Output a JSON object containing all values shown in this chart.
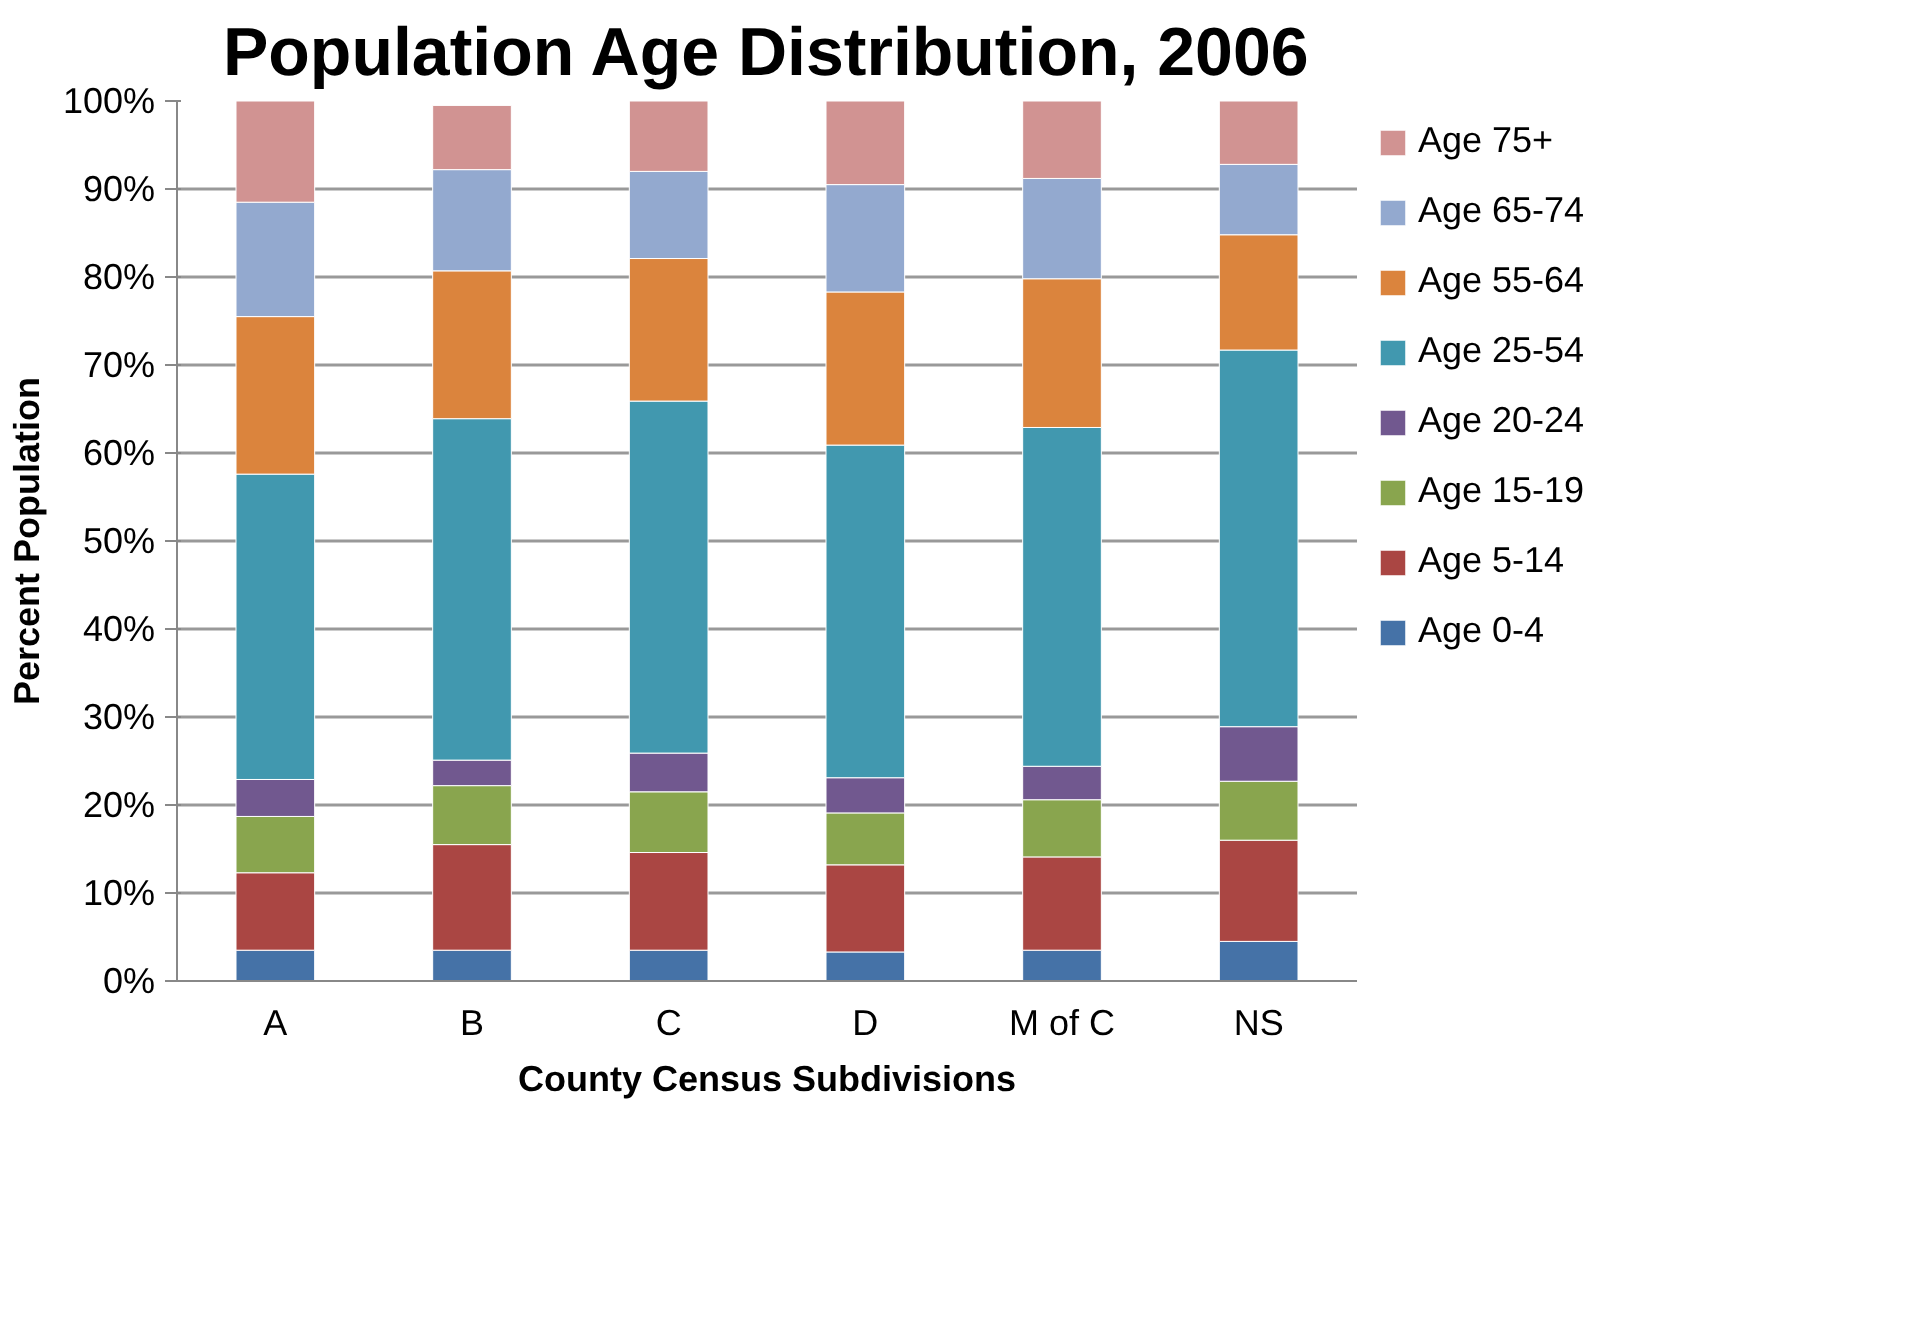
{
  "chart_data": {
    "type": "bar",
    "stacked": true,
    "title": "Population Age Distribution, 2006",
    "xlabel": "County Census Subdivisions",
    "ylabel": "Percent Population",
    "categories": [
      "A",
      "B",
      "C",
      "D",
      "M of C",
      "NS"
    ],
    "series": [
      {
        "name": "Age 0-4",
        "color": "#4572a7",
        "values": [
          3.5,
          3.5,
          3.5,
          3.3,
          3.5,
          4.5
        ]
      },
      {
        "name": "Age 5-14",
        "color": "#aa4643",
        "values": [
          8.8,
          12.0,
          11.1,
          9.9,
          10.6,
          11.5
        ]
      },
      {
        "name": "Age 15-19",
        "color": "#89a54e",
        "values": [
          6.4,
          6.7,
          6.9,
          5.9,
          6.5,
          6.7
        ]
      },
      {
        "name": "Age 20-24",
        "color": "#71588f",
        "values": [
          4.2,
          2.9,
          4.4,
          4.0,
          3.8,
          6.2
        ]
      },
      {
        "name": "Age 25-54",
        "color": "#4198af",
        "values": [
          34.7,
          38.8,
          40.0,
          37.8,
          38.5,
          42.8
        ]
      },
      {
        "name": "Age 55-64",
        "color": "#db843d",
        "values": [
          17.9,
          16.8,
          16.2,
          17.4,
          16.9,
          13.1
        ]
      },
      {
        "name": "Age 65-74",
        "color": "#93a9cf",
        "values": [
          13.0,
          11.5,
          9.9,
          12.2,
          11.4,
          8.0
        ]
      },
      {
        "name": "Age 75+",
        "color": "#d19392",
        "values": [
          11.5,
          7.3,
          8.0,
          9.5,
          8.8,
          7.2
        ]
      }
    ],
    "ylim": [
      0,
      100
    ],
    "yticks": [
      {
        "value": 0,
        "label": "0%"
      },
      {
        "value": 10,
        "label": "10%"
      },
      {
        "value": 20,
        "label": "20%"
      },
      {
        "value": 30,
        "label": "30%"
      },
      {
        "value": 40,
        "label": "40%"
      },
      {
        "value": 50,
        "label": "50%"
      },
      {
        "value": 60,
        "label": "60%"
      },
      {
        "value": 70,
        "label": "70%"
      },
      {
        "value": 80,
        "label": "80%"
      },
      {
        "value": 90,
        "label": "90%"
      },
      {
        "value": 100,
        "label": "100%"
      }
    ],
    "grid": "y",
    "legend": "right"
  }
}
